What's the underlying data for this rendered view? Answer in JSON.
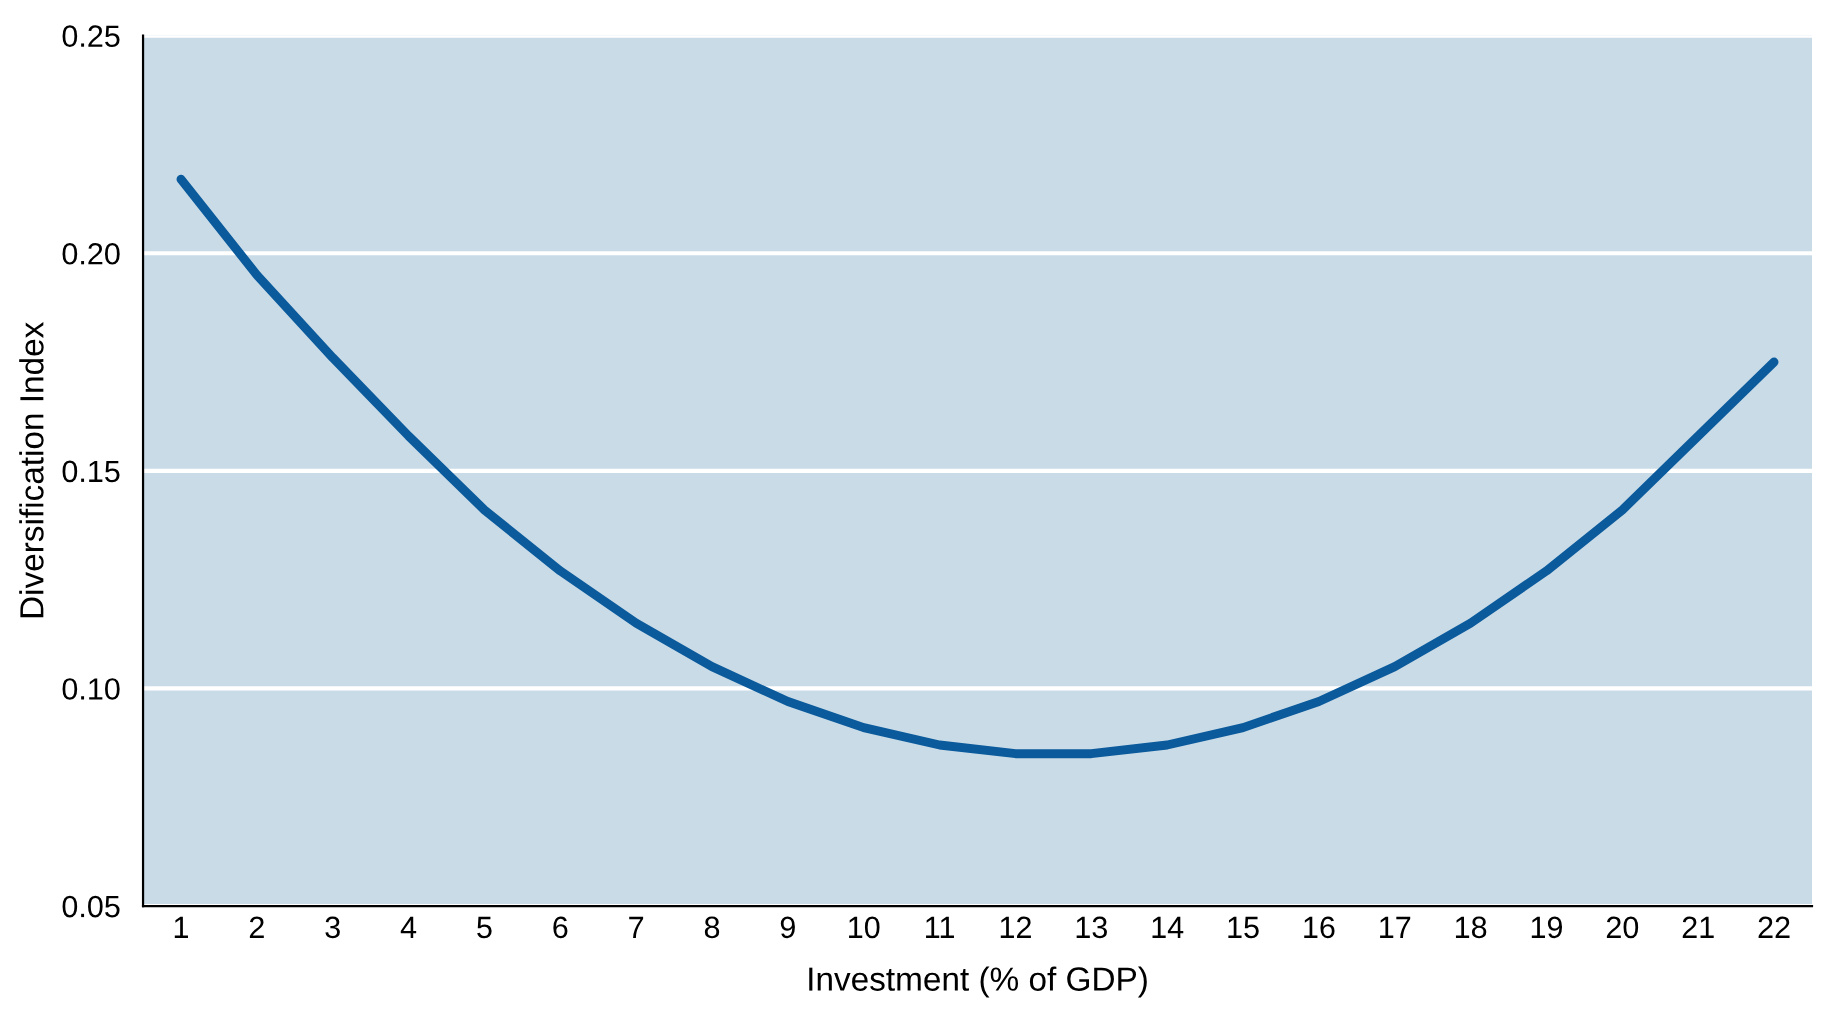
{
  "chart_data": {
    "type": "line",
    "xlabel": "Investment (% of GDP)",
    "ylabel": "Diversification Index",
    "x": [
      1,
      2,
      3,
      4,
      5,
      6,
      7,
      8,
      9,
      10,
      11,
      12,
      13,
      14,
      15,
      16,
      17,
      18,
      19,
      20,
      21,
      22
    ],
    "series": [
      {
        "color": "#0a5a9c",
        "values": [
          0.217,
          0.195,
          0.176,
          0.158,
          0.141,
          0.127,
          0.115,
          0.105,
          0.097,
          0.091,
          0.087,
          0.085,
          0.085,
          0.087,
          0.091,
          0.097,
          0.105,
          0.115,
          0.127,
          0.141,
          0.158,
          0.175
        ]
      }
    ],
    "xlim": [
      0.5,
      22.5
    ],
    "xticks": [
      1,
      2,
      3,
      4,
      5,
      6,
      7,
      8,
      9,
      10,
      11,
      12,
      13,
      14,
      15,
      16,
      17,
      18,
      19,
      20,
      21,
      22
    ],
    "ylim": [
      0.05,
      0.25
    ],
    "yticks": [
      {
        "value": 0.05,
        "label": "0.05"
      },
      {
        "value": 0.1,
        "label": "0.10"
      },
      {
        "value": 0.15,
        "label": "0.15"
      },
      {
        "value": 0.2,
        "label": "0.20"
      },
      {
        "value": 0.25,
        "label": "0.25"
      }
    ],
    "grid": "y",
    "marker": "none",
    "line_style": "solid"
  }
}
